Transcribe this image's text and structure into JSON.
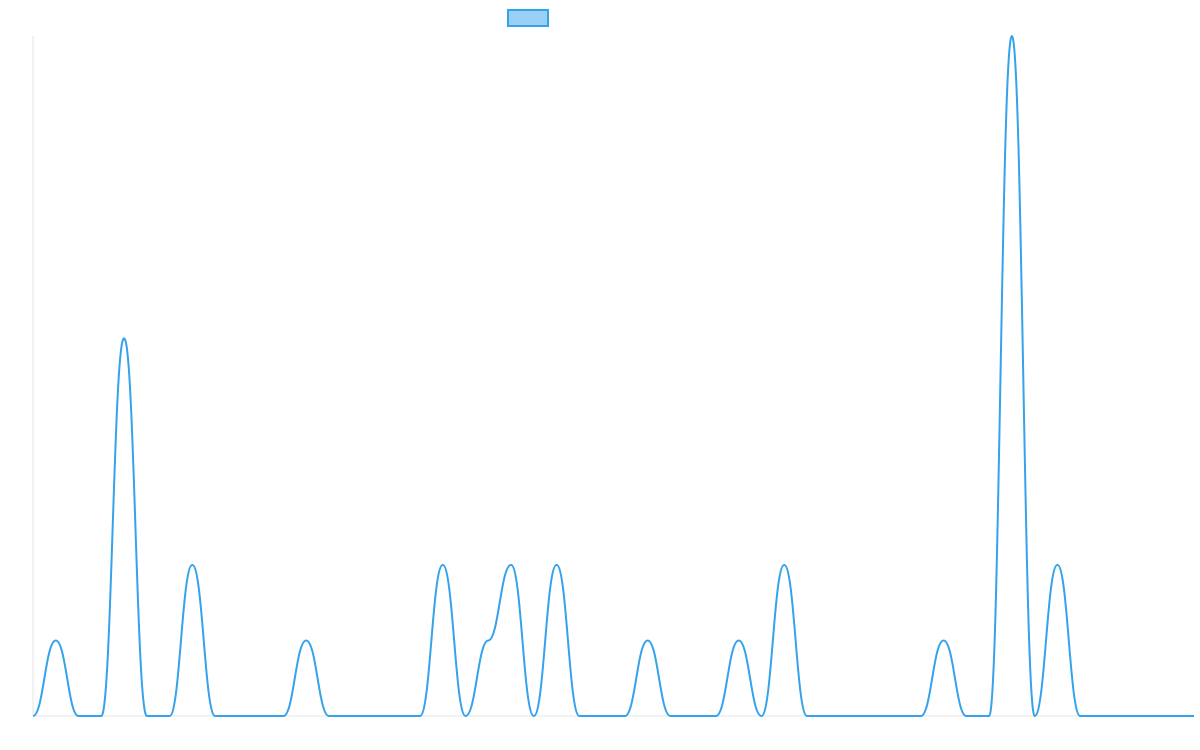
{
  "chart_data": {
    "type": "line",
    "title": "",
    "xlabel": "",
    "ylabel": "",
    "x": [
      0,
      1,
      2,
      3,
      4,
      5,
      6,
      7,
      8,
      9,
      10,
      11,
      12,
      13,
      14,
      15,
      16,
      17,
      18,
      19,
      20,
      21,
      22,
      23,
      24,
      25,
      26,
      27,
      28,
      29,
      30,
      31,
      32,
      33,
      34,
      35,
      36,
      37,
      38,
      39,
      40,
      41,
      42,
      43,
      44,
      45,
      46,
      47,
      48,
      49,
      50,
      51
    ],
    "ylim": [
      0,
      9
    ],
    "series": [
      {
        "name": "",
        "values": [
          0,
          1,
          0,
          0,
          5,
          0,
          0,
          2,
          0,
          0,
          0,
          0,
          1,
          0,
          0,
          0,
          0,
          0,
          2,
          0,
          1,
          2,
          0,
          2,
          0,
          0,
          0,
          1,
          0,
          0,
          0,
          1,
          0,
          2,
          0,
          0,
          0,
          0,
          0,
          0,
          1,
          0,
          0,
          9,
          0,
          2,
          0,
          0,
          0,
          0,
          0,
          0
        ],
        "color": "#36a2eb",
        "fill": "#9ad0f5"
      }
    ],
    "grid": false,
    "legend": "top"
  }
}
